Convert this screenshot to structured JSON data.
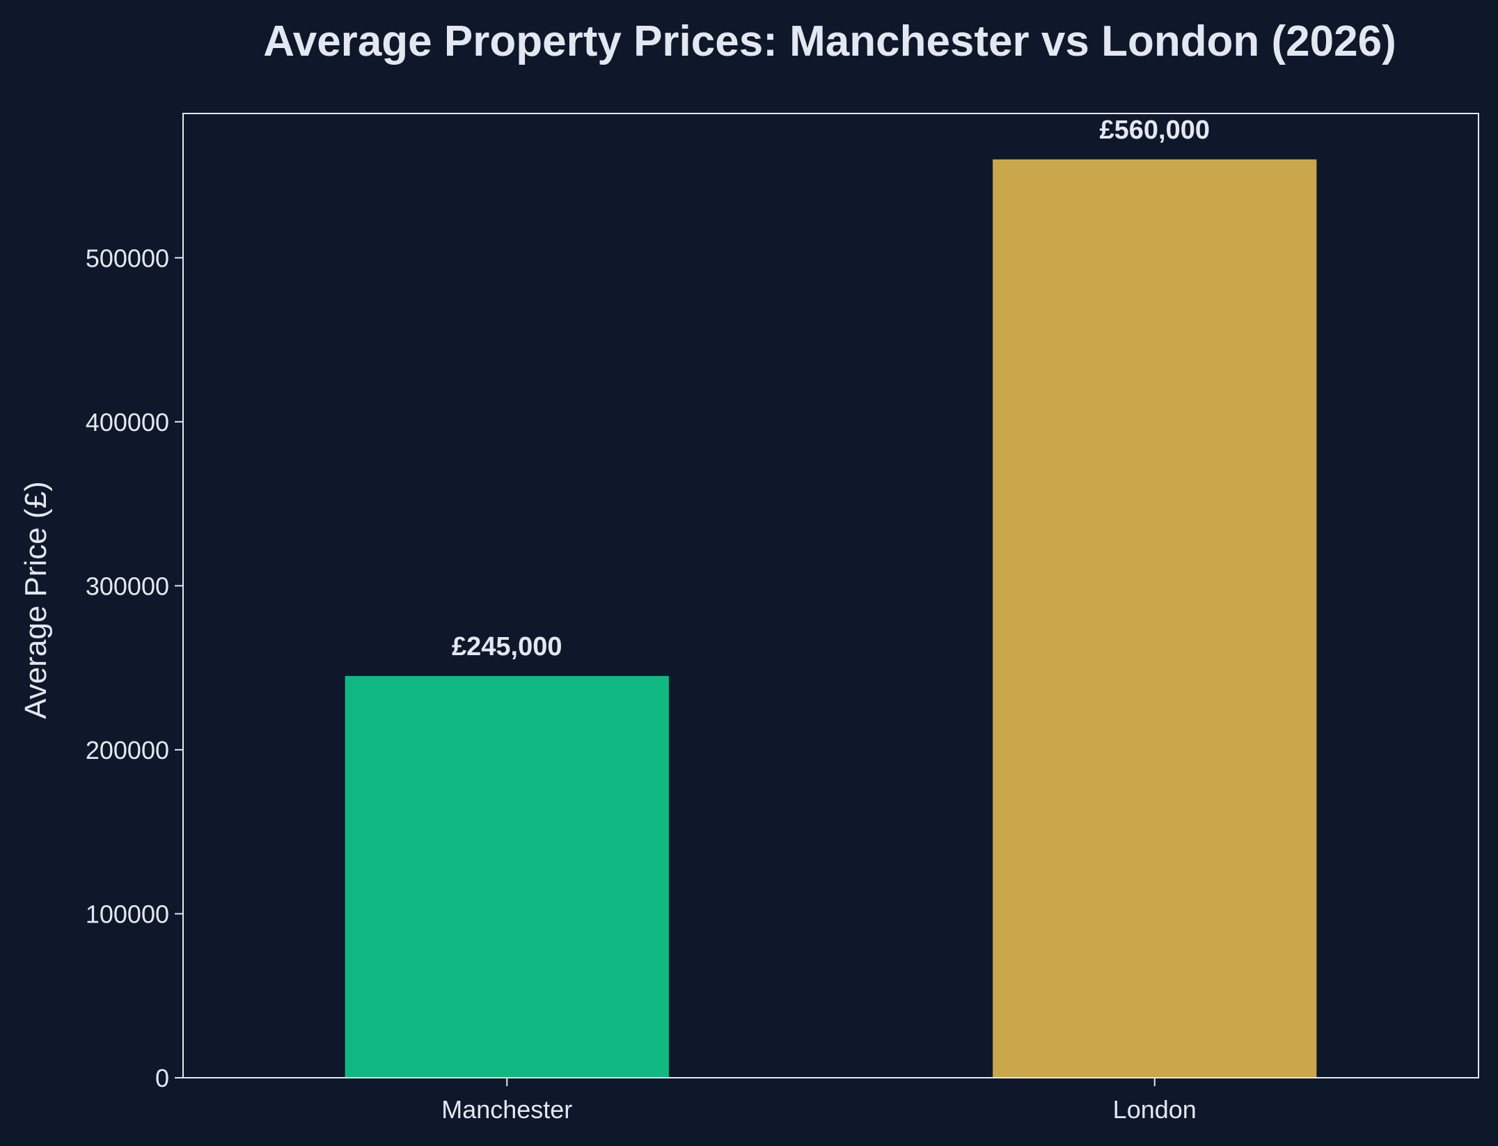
{
  "chart_data": {
    "type": "bar",
    "title": "Average Property Prices: Manchester vs London (2026)",
    "xlabel": "",
    "ylabel": "Average Price (£)",
    "categories": [
      "Manchester",
      "London"
    ],
    "values": [
      245000,
      560000
    ],
    "data_labels": [
      "£245,000",
      "£560,000"
    ],
    "colors": [
      "#10b981",
      "#c9a74a"
    ],
    "ylim": [
      0,
      588000
    ],
    "yticks": [
      0,
      100000,
      200000,
      300000,
      400000,
      500000
    ],
    "ytick_labels": [
      "0",
      "100000",
      "200000",
      "300000",
      "400000",
      "500000"
    ],
    "grid": false,
    "legend": "none"
  },
  "theme": {
    "background": "#0f172a",
    "text": "#e2e8f0",
    "axis": "#e2e8f0"
  }
}
